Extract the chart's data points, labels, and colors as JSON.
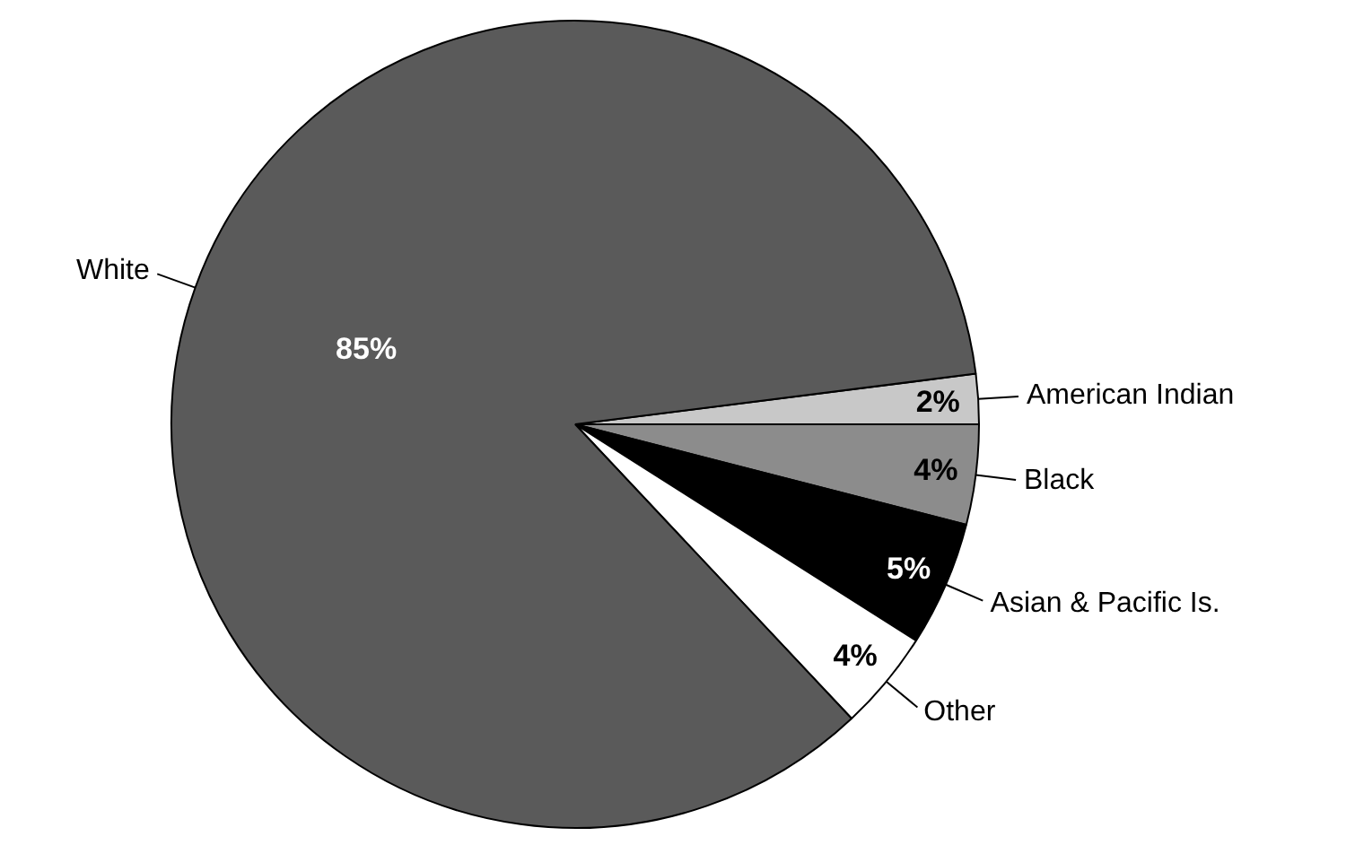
{
  "chart_data": {
    "type": "pie",
    "categories": [
      "American Indian",
      "Black",
      "Asian & Pacific Is.",
      "Other",
      "White"
    ],
    "values": [
      2,
      4,
      5,
      4,
      85
    ],
    "colors": [
      "#c8c8c8",
      "#8c8c8c",
      "#000000",
      "#ffffff",
      "#5a5a5a"
    ],
    "value_labels": [
      "2%",
      "4%",
      "5%",
      "4%",
      "85%"
    ]
  }
}
